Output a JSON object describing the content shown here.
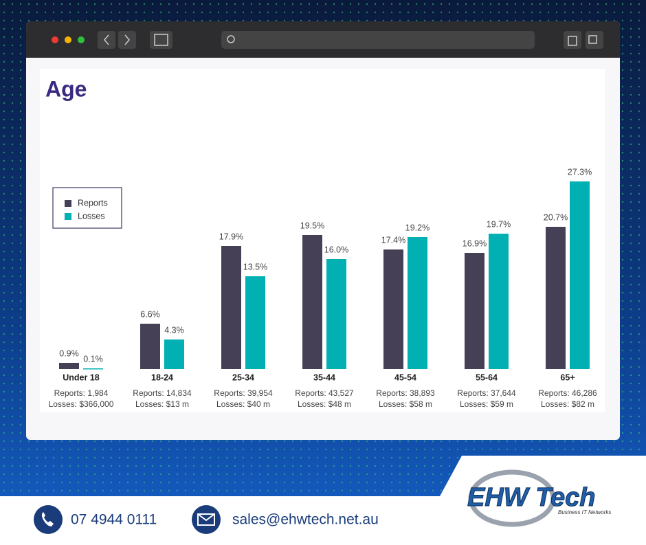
{
  "chart_data": {
    "type": "bar",
    "title": "Age",
    "categories": [
      "Under 18",
      "18-24",
      "25-34",
      "35-44",
      "45-54",
      "55-64",
      "65+"
    ],
    "series": [
      {
        "name": "Reports",
        "color": "#454056",
        "values": [
          0.9,
          6.6,
          17.9,
          19.5,
          17.4,
          16.9,
          20.7
        ],
        "value_labels": [
          "0.9%",
          "6.6%",
          "17.9%",
          "19.5%",
          "17.4%",
          "16.9%",
          "20.7%"
        ]
      },
      {
        "name": "Losses",
        "color": "#00b0b3",
        "values": [
          0.1,
          4.3,
          13.5,
          16.0,
          19.2,
          19.7,
          27.3
        ],
        "value_labels": [
          "0.1%",
          "4.3%",
          "13.5%",
          "16.0%",
          "19.2%",
          "19.7%",
          "27.3%"
        ]
      }
    ],
    "details": [
      [
        "Reports: 1,984",
        "Losses: $366,000"
      ],
      [
        "Reports: 14,834",
        "Losses: $13 m"
      ],
      [
        "Reports: 39,954",
        "Losses: $40 m"
      ],
      [
        "Reports: 43,527",
        "Losses: $48 m"
      ],
      [
        "Reports: 38,893",
        "Losses: $58 m"
      ],
      [
        "Reports: 37,644",
        "Losses: $59 m"
      ],
      [
        "Reports: 46,286",
        "Losses: $82 m"
      ]
    ],
    "ylim": [
      0,
      30
    ],
    "legend": "upper left"
  },
  "footer": {
    "phone": "07 4944 0111",
    "email": "sales@ehwtech.net.au"
  },
  "logo": {
    "name": "EHW Tech",
    "tagline": "Business IT Networks"
  }
}
